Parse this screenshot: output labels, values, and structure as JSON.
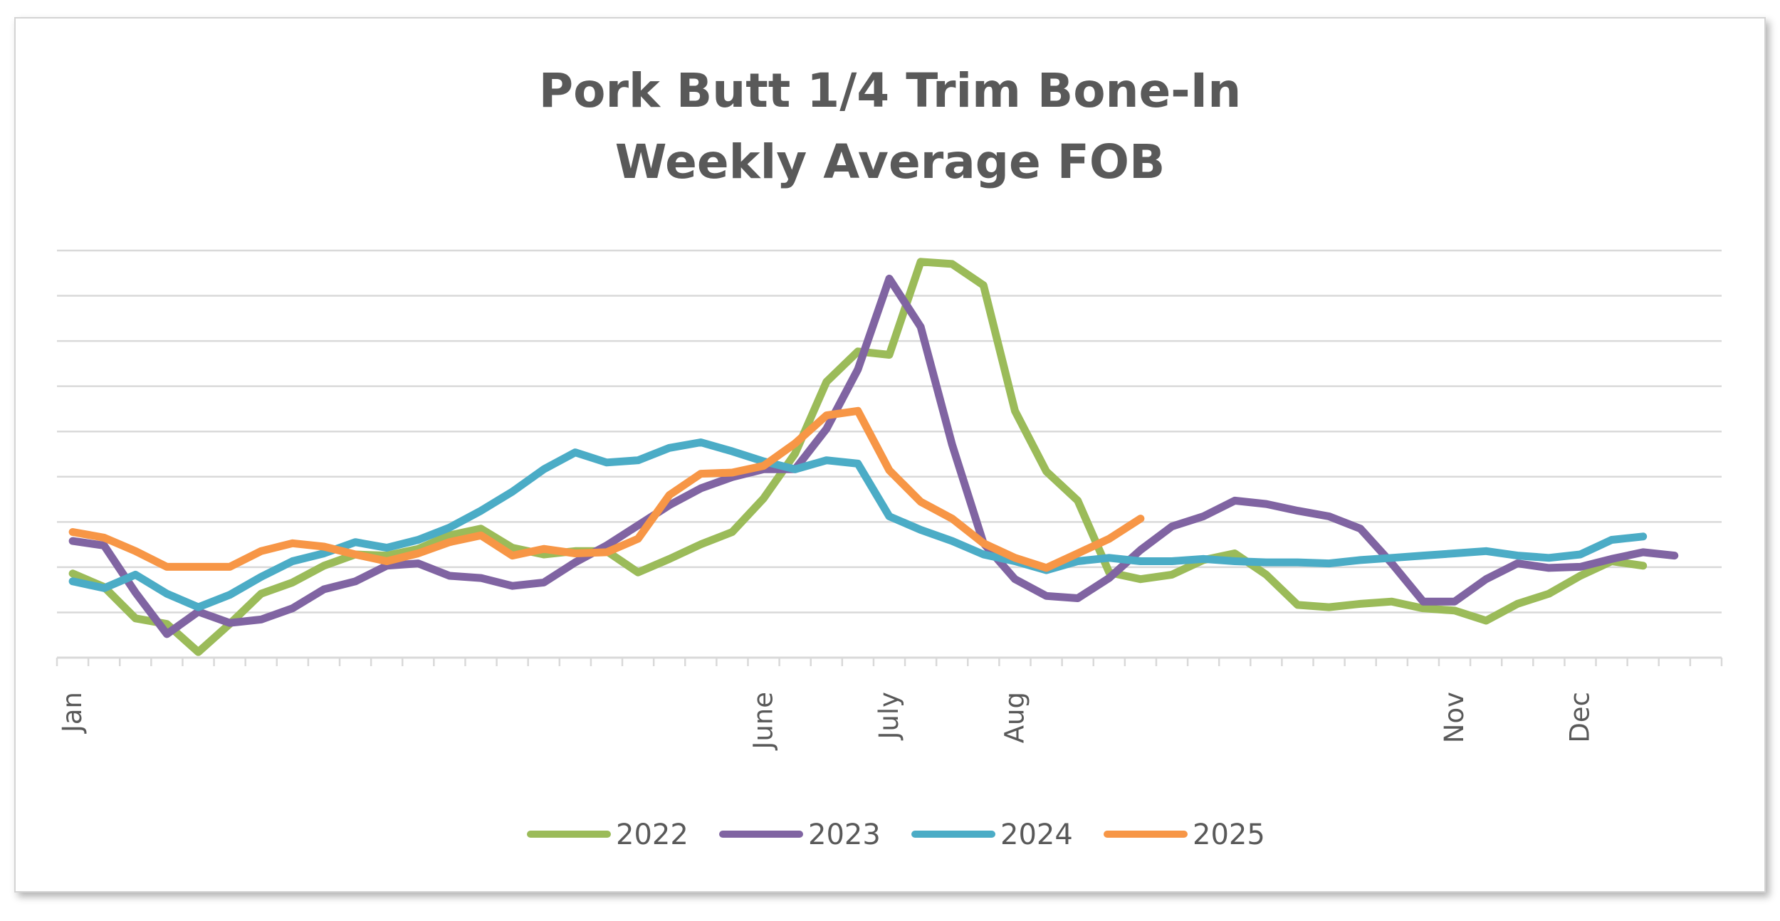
{
  "chart_data": {
    "type": "line",
    "title": [
      "Pork Butt 1/4 Trim Bone-In",
      "Weekly Average FOB"
    ],
    "xlabel": "",
    "ylabel": "",
    "weeks": 53,
    "y_axis_labels_shown": false,
    "grid": true,
    "gridlines": 9,
    "legend_position": "bottom",
    "month_ticks": [
      {
        "label": "Jan",
        "week": 1
      },
      {
        "label": "June",
        "week": 23
      },
      {
        "label": "July",
        "week": 27
      },
      {
        "label": "Aug",
        "week": 31
      },
      {
        "label": "Nov",
        "week": 45
      },
      {
        "label": "Dec",
        "week": 49
      }
    ],
    "series": [
      {
        "name": "2022",
        "color": "#9BBB59",
        "values": [
          2.75,
          2.63,
          2.35,
          2.3,
          2.05,
          2.3,
          2.57,
          2.67,
          2.82,
          2.92,
          2.91,
          2.97,
          3.09,
          3.15,
          2.98,
          2.92,
          2.95,
          2.95,
          2.76,
          2.88,
          3.01,
          3.12,
          3.42,
          3.82,
          4.46,
          4.73,
          4.7,
          5.53,
          5.51,
          5.32,
          4.2,
          3.66,
          3.4,
          2.76,
          2.7,
          2.74,
          2.87,
          2.93,
          2.74,
          2.47,
          2.45,
          2.48,
          2.5,
          2.44,
          2.42,
          2.33,
          2.48,
          2.57,
          2.73,
          2.86,
          2.82
        ]
      },
      {
        "name": "2023",
        "color": "#8064A2",
        "values": [
          3.04,
          3.0,
          2.58,
          2.21,
          2.41,
          2.31,
          2.34,
          2.44,
          2.61,
          2.68,
          2.82,
          2.84,
          2.73,
          2.71,
          2.64,
          2.67,
          2.85,
          3.0,
          3.18,
          3.36,
          3.51,
          3.61,
          3.68,
          3.68,
          4.04,
          4.57,
          5.38,
          4.95,
          3.9,
          3.02,
          2.7,
          2.55,
          2.53,
          2.71,
          2.96,
          3.17,
          3.26,
          3.4,
          3.37,
          3.31,
          3.26,
          3.15,
          2.84,
          2.5,
          2.5,
          2.7,
          2.84,
          2.8,
          2.81,
          2.88,
          2.94,
          2.91
        ]
      },
      {
        "name": "2024",
        "color": "#4BACC6",
        "values": [
          2.68,
          2.62,
          2.74,
          2.57,
          2.45,
          2.56,
          2.72,
          2.86,
          2.93,
          3.03,
          2.98,
          3.05,
          3.16,
          3.31,
          3.48,
          3.68,
          3.83,
          3.74,
          3.76,
          3.87,
          3.92,
          3.84,
          3.75,
          3.68,
          3.76,
          3.73,
          3.26,
          3.14,
          3.04,
          2.92,
          2.86,
          2.78,
          2.86,
          2.89,
          2.86,
          2.86,
          2.88,
          2.86,
          2.85,
          2.85,
          2.84,
          2.87,
          2.89,
          2.91,
          2.93,
          2.95,
          2.91,
          2.89,
          2.92,
          3.05,
          3.08
        ]
      },
      {
        "name": "2025",
        "color": "#F79646",
        "values": [
          3.12,
          3.07,
          2.95,
          2.81,
          2.81,
          2.81,
          2.95,
          3.02,
          2.99,
          2.92,
          2.86,
          2.93,
          3.03,
          3.09,
          2.91,
          2.97,
          2.93,
          2.94,
          3.06,
          3.45,
          3.64,
          3.65,
          3.71,
          3.91,
          4.16,
          4.2,
          3.67,
          3.39,
          3.24,
          3.02,
          2.89,
          2.8,
          2.93,
          3.06,
          3.24
        ]
      }
    ]
  }
}
